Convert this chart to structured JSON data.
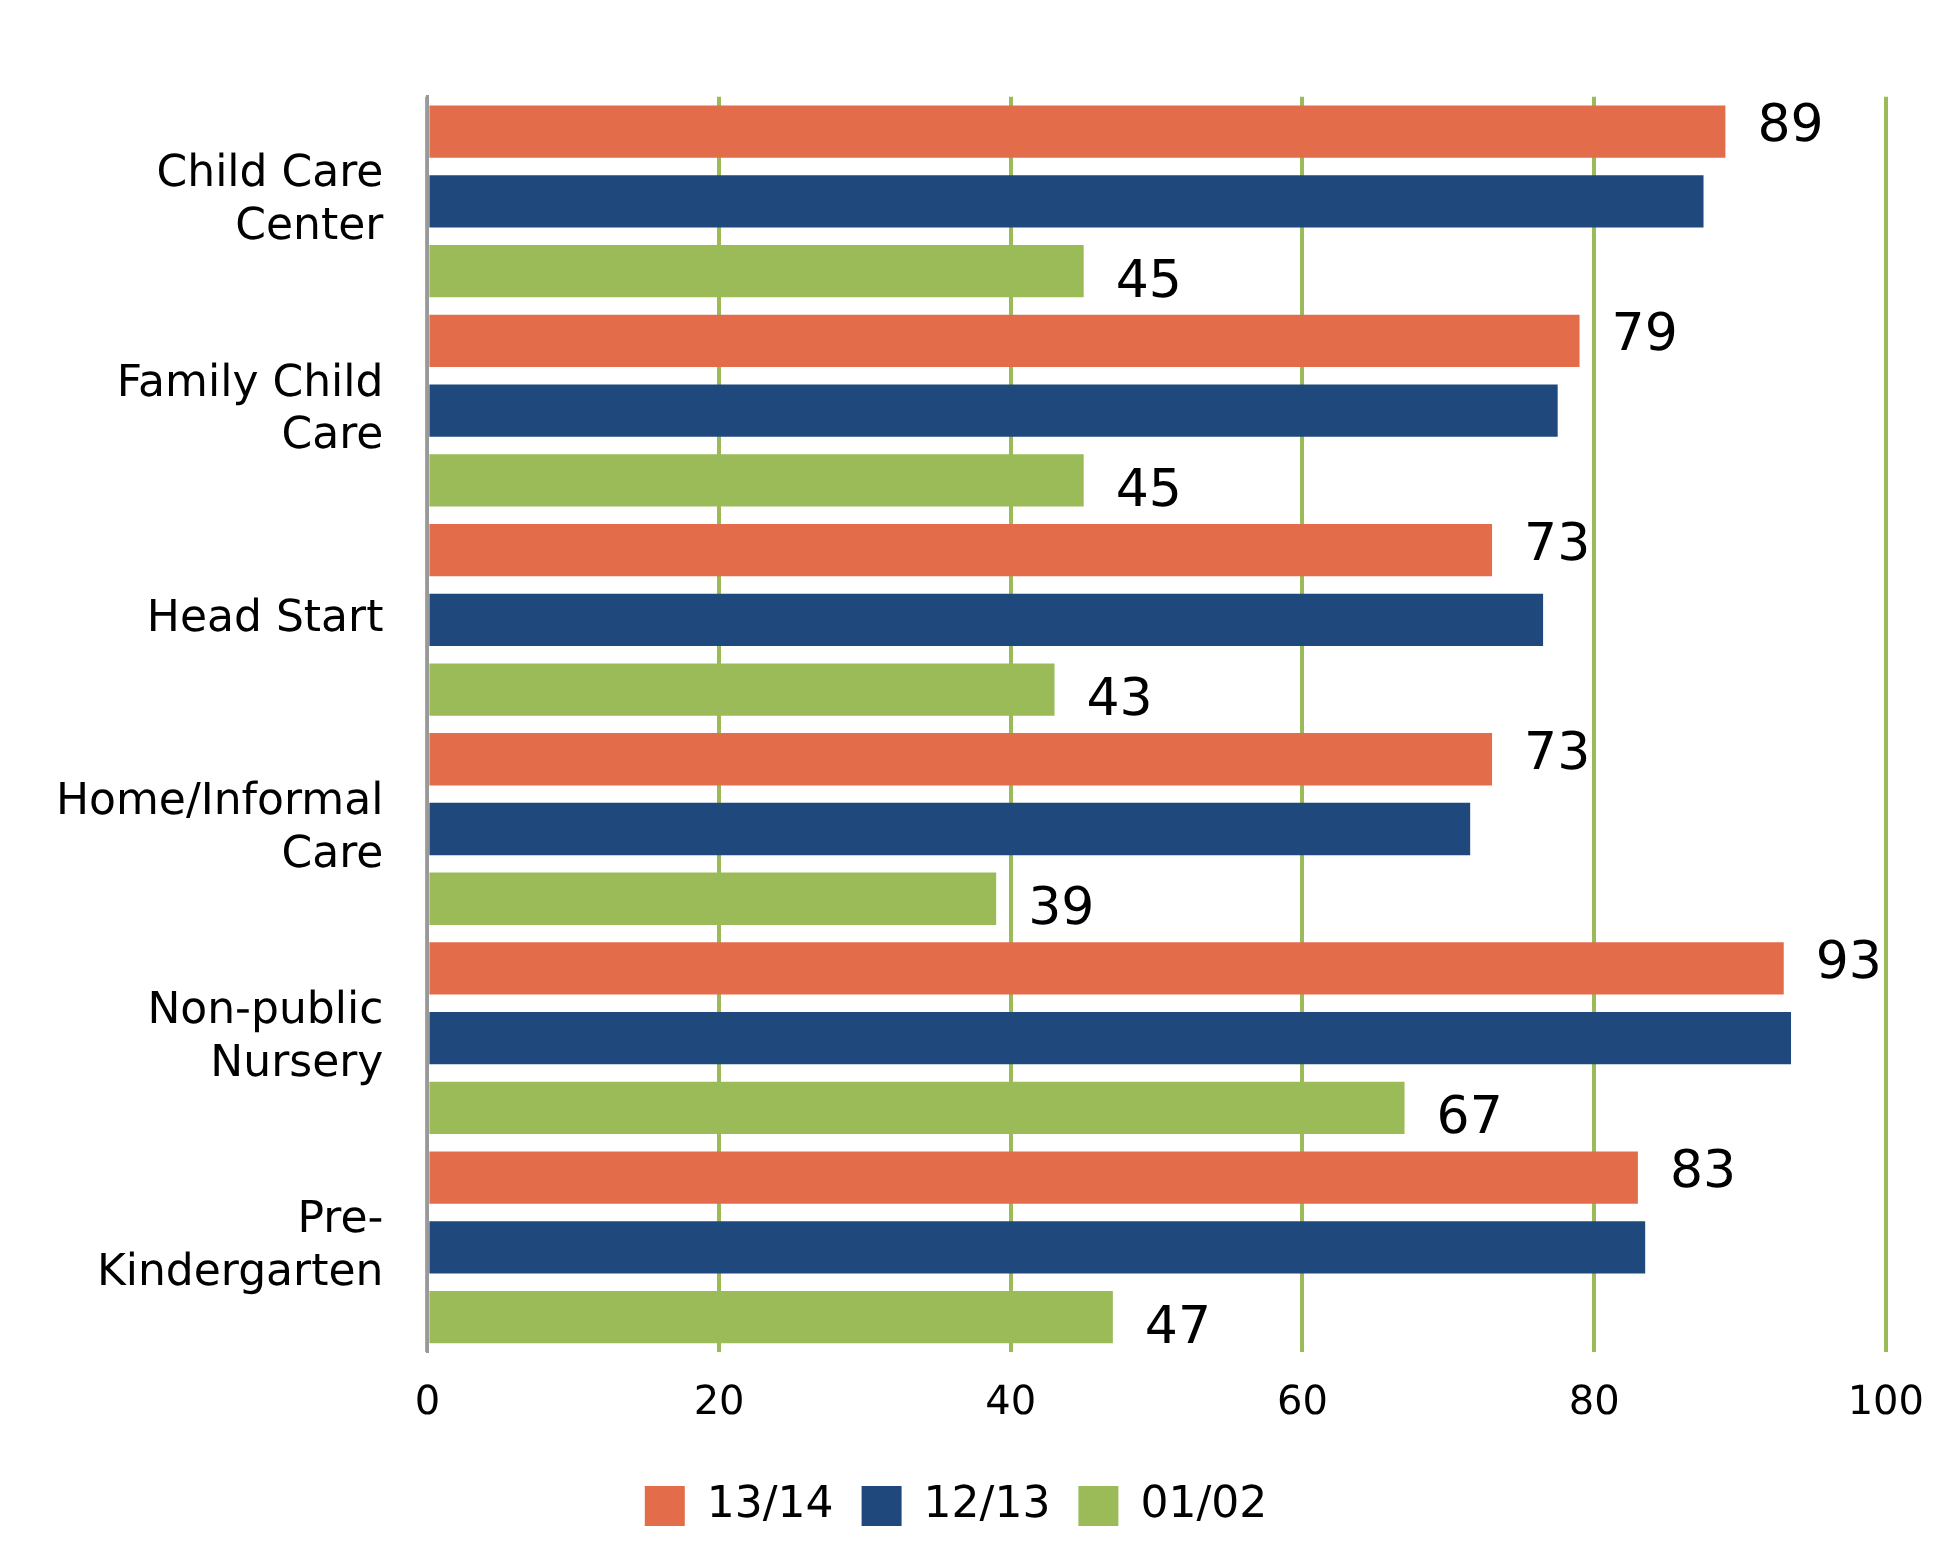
{
  "chart_data": {
    "type": "bar",
    "orientation": "horizontal",
    "categories": [
      [
        "Child Care",
        "Center"
      ],
      [
        "Family Child",
        "Care"
      ],
      [
        "Head Start"
      ],
      [
        "Home/Informal",
        "Care"
      ],
      [
        "Non-public",
        "Nursery"
      ],
      [
        "Pre-",
        "Kindergarten"
      ]
    ],
    "series": [
      {
        "name": "13/14",
        "color": "#e36c4a",
        "values": [
          89,
          79,
          73,
          73,
          93,
          83
        ],
        "value_labels": [
          "89",
          "79",
          "73",
          "73",
          "93",
          "83"
        ]
      },
      {
        "name": "12/13",
        "color": "#1f497d",
        "values": [
          87.5,
          77.5,
          76.5,
          71.5,
          93.5,
          83.5
        ]
      },
      {
        "name": "01/02",
        "color": "#9bbb59",
        "values": [
          45,
          45,
          43,
          39,
          67,
          47
        ],
        "value_labels": [
          "45",
          "45",
          "43",
          "39",
          "67",
          "47"
        ]
      }
    ],
    "xlim": [
      0,
      100
    ],
    "xticks": [
      0,
      20,
      40,
      60,
      80,
      100
    ],
    "grid": "x",
    "legend": "bottom"
  }
}
